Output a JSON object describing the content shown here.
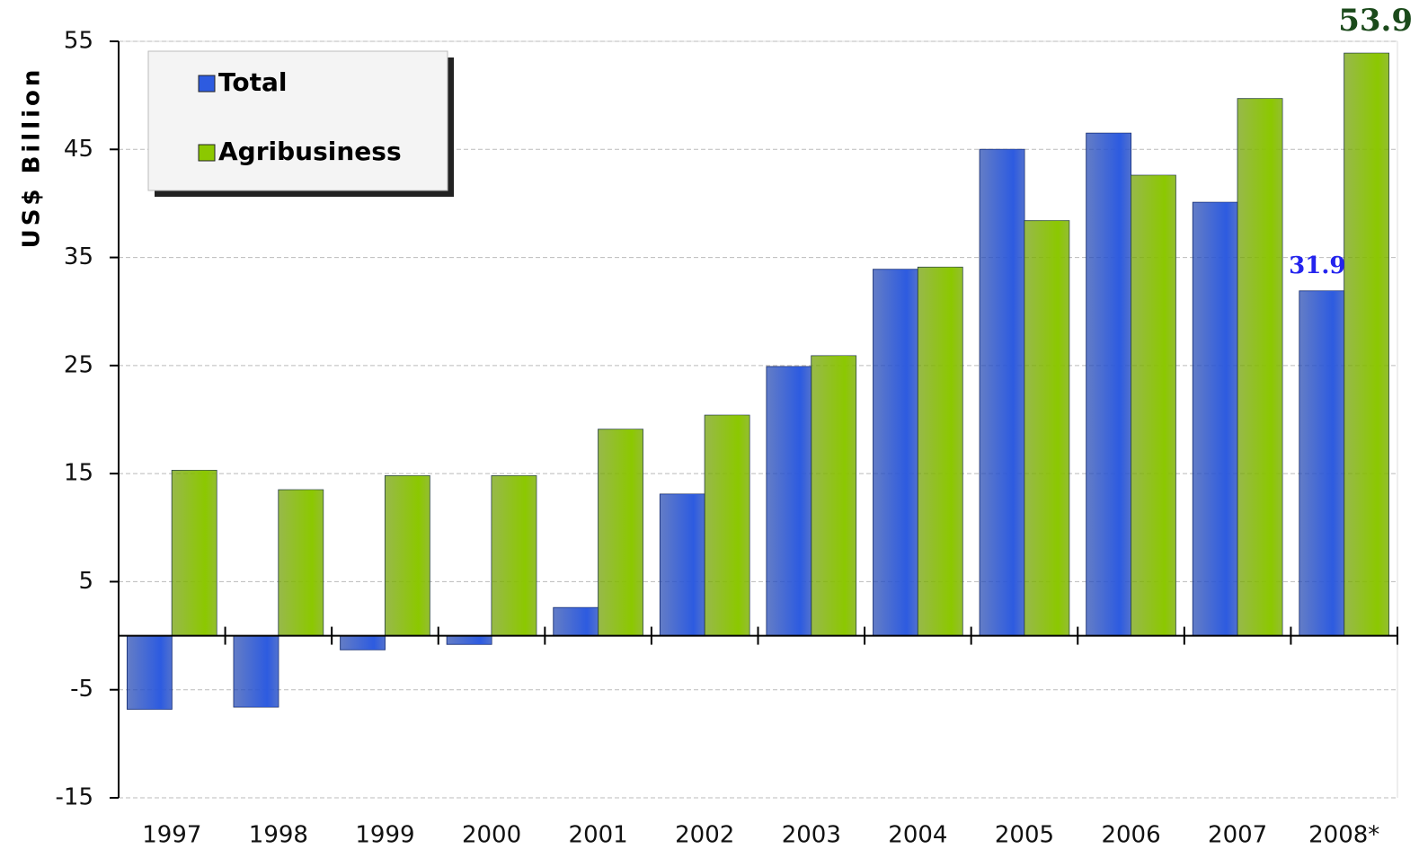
{
  "chart_data": {
    "type": "bar",
    "y_label": "US$   Billion",
    "categories": [
      "1997",
      "1998",
      "1999",
      "2000",
      "2001",
      "2002",
      "2003",
      "2004",
      "2005",
      "2006",
      "2007",
      "2008*"
    ],
    "series": [
      {
        "name": "Total",
        "color": "#2d5be0",
        "values": [
          -6.8,
          -6.6,
          -1.3,
          -0.8,
          2.6,
          13.1,
          24.9,
          33.9,
          45.0,
          46.5,
          40.1,
          31.9
        ]
      },
      {
        "name": "Agribusiness",
        "color": "#8cc800",
        "values": [
          15.3,
          13.5,
          14.8,
          14.8,
          19.1,
          20.4,
          25.9,
          34.1,
          38.4,
          42.6,
          49.7,
          53.9
        ]
      }
    ],
    "ylim": [
      -15,
      55
    ],
    "yticks": [
      -15,
      -5,
      5,
      15,
      25,
      35,
      45,
      55
    ],
    "grid": true,
    "legend": "top-left"
  }
}
